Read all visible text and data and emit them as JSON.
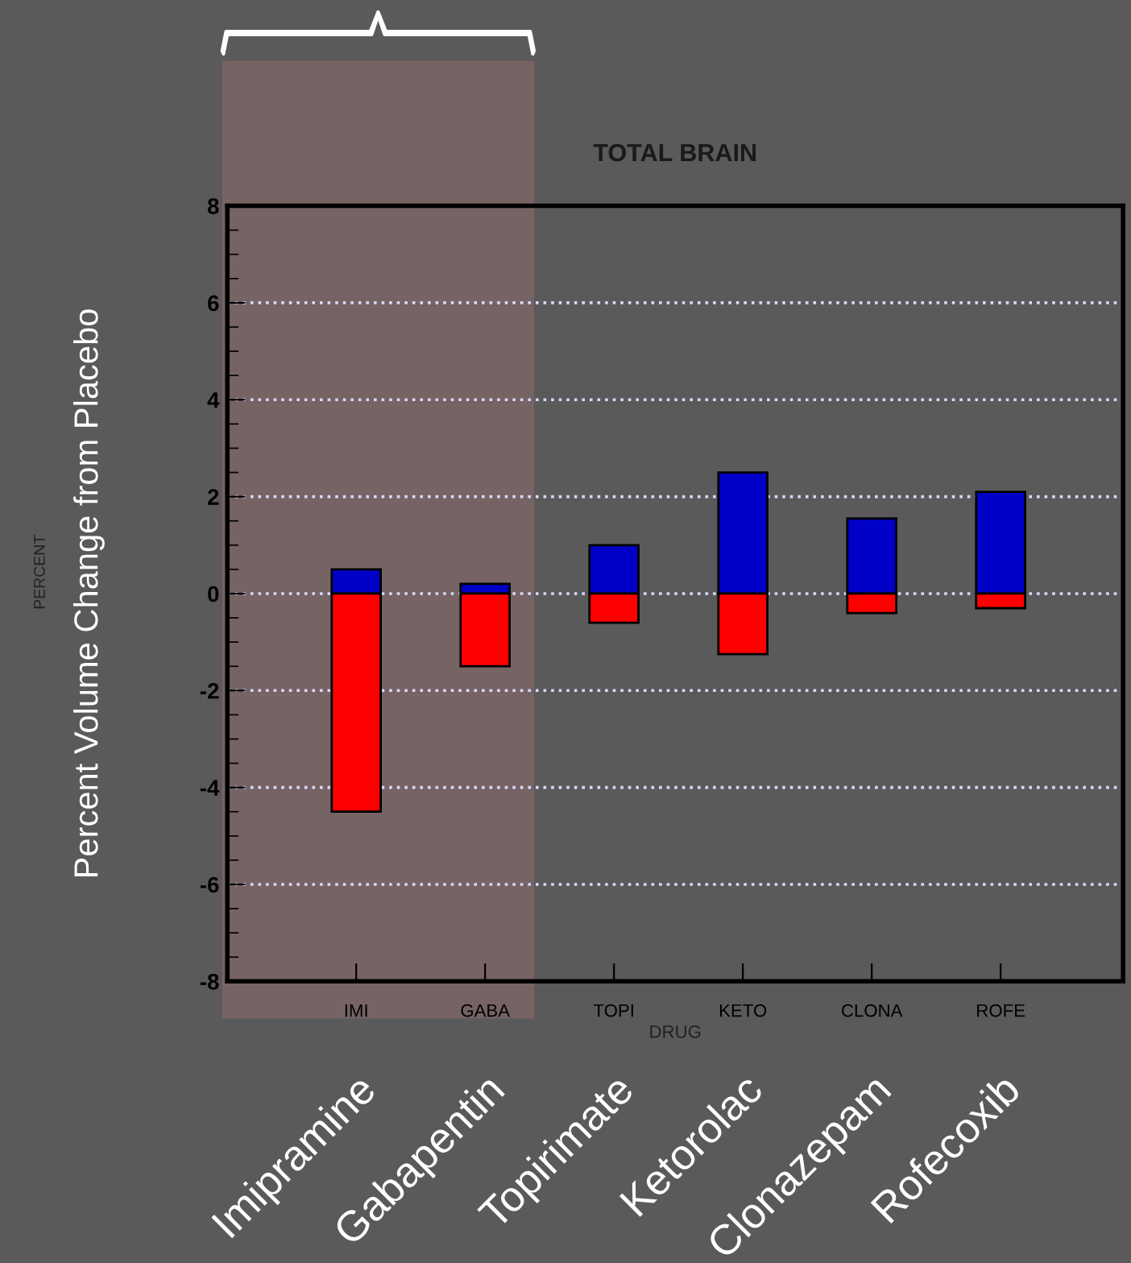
{
  "chart_data": {
    "type": "bar",
    "title": "TOTAL BRAIN",
    "xlabel": "DRUG",
    "ylabel": "Percent Volume Change from Placebo",
    "categories": [
      "IMI",
      "GABA",
      "TOPI",
      "KETO",
      "CLONA",
      "ROFE"
    ],
    "series": [
      {
        "color": "#0000c8",
        "values": [
          0.5,
          0.2,
          1.0,
          2.5,
          1.55,
          2.1
        ]
      },
      {
        "color": "#ff0000",
        "values": [
          -4.5,
          -1.5,
          -0.6,
          -1.25,
          -0.4,
          -0.3
        ]
      }
    ],
    "stacked": true,
    "ylim": [
      -8,
      8
    ],
    "yticks": [
      -8,
      -6,
      -4,
      -2,
      0,
      2,
      4,
      6,
      8
    ],
    "grid": "y",
    "annotations": [
      "PERCENT",
      "Imipramine",
      "Gabapentin",
      "Topirimate",
      "Ketorolac",
      "Clonazepam",
      "Rofecoxib"
    ]
  }
}
